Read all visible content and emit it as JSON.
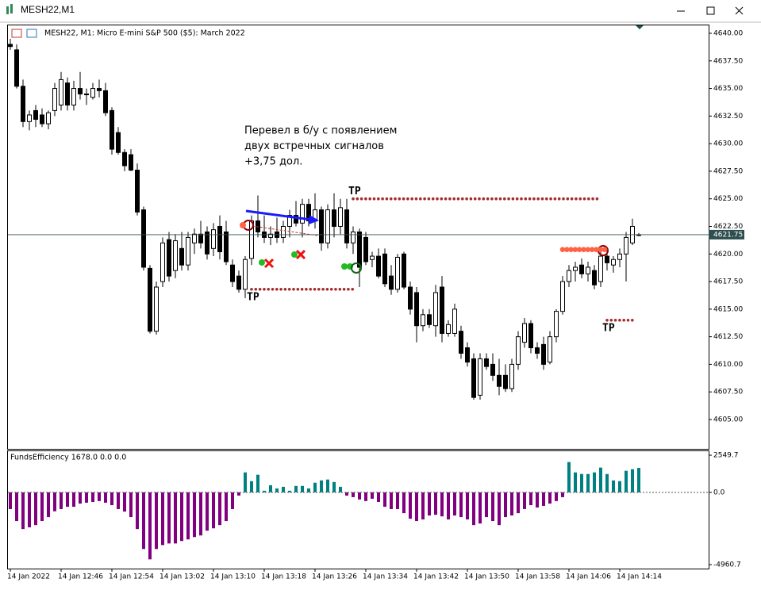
{
  "window_title": "MESH22,M1",
  "chart_data": [
    {
      "type": "candlestick",
      "title": "MESH22, M1:  Micro E-mini S&P 500 ($5): March 2022",
      "categories": [
        "14 Jan 2022",
        null,
        null,
        null,
        null,
        null,
        null,
        null,
        "14 Jan 12:46",
        null,
        null,
        null,
        null,
        null,
        null,
        null,
        "14 Jan 12:54",
        null,
        null,
        null,
        null,
        null,
        null,
        null,
        "14 Jan 13:02",
        null,
        null,
        null,
        null,
        null,
        null,
        null,
        "14 Jan 13:10",
        null,
        null,
        null,
        null,
        null,
        null,
        null,
        "14 Jan 13:18",
        null,
        null,
        null,
        null,
        null,
        null,
        null,
        "14 Jan 13:26",
        null,
        null,
        null,
        null,
        null,
        null,
        null,
        "14 Jan 13:34",
        null,
        null,
        null,
        null,
        null,
        null,
        null,
        "14 Jan 13:42",
        null,
        null,
        null,
        null,
        null,
        null,
        null,
        "14 Jan 13:50",
        null,
        null,
        null,
        null,
        null,
        null,
        null,
        "14 Jan 13:58",
        null,
        null,
        null,
        null,
        null,
        null,
        null,
        "14 Jan 14:06",
        null,
        null,
        null,
        null,
        null,
        null,
        null,
        "14 Jan 14:14",
        null,
        null,
        null
      ],
      "open": [
        4639.0,
        4638.5,
        4635.2,
        4632,
        4633,
        4632.6,
        4631.8,
        4633,
        4633.5,
        4635.5,
        4633.5,
        4635,
        4634.5,
        4634.2,
        4635,
        4634.8,
        4633,
        4631,
        4629.2,
        4629,
        4627.6,
        4624,
        4618.7,
        4613,
        4617.5,
        4621.3,
        4618.5,
        4620.5,
        4619,
        4621,
        4621.8,
        4622,
        4620.5,
        4622.5,
        4622,
        4619,
        4618,
        4616.8,
        4619.6,
        4623,
        4622,
        4621.5,
        4622,
        4621.5,
        4622.5,
        4623.5,
        4622.8,
        4624.5,
        4623,
        4624,
        4621,
        4624,
        4622.5,
        4624,
        4621,
        4622,
        4621.5,
        4619.5,
        4619.8,
        4620,
        4618,
        4616.8,
        4620,
        4617,
        4616.5,
        4613.5,
        4614.5,
        4613.5,
        4617,
        4612.8,
        4612.8,
        4613,
        4611.5,
        4610.5,
        4607.2,
        4610.5,
        4610,
        4609,
        4609,
        4607.8,
        4610,
        4612,
        4613.7,
        4611.5,
        4611.8,
        4610.2,
        4612.5,
        4614.8,
        4617.5,
        4618.5,
        4619,
        4618.2,
        4618.5,
        4617.5,
        4619.8,
        4619,
        4619.5,
        4620,
        4621,
        4621.75
      ],
      "high": [
        4639.5,
        4639,
        4635.8,
        4633,
        4633.5,
        4633.2,
        4633,
        4635.5,
        4636.5,
        4636,
        4635.7,
        4636.5,
        4635,
        4635.5,
        4635.8,
        4635.5,
        4633.3,
        4631.5,
        4629.5,
        4629.5,
        4628.2,
        4624.3,
        4619,
        4617.5,
        4621.5,
        4622,
        4621.8,
        4622,
        4622,
        4622.3,
        4623,
        4622.5,
        4622.8,
        4623.5,
        4623,
        4619.5,
        4618.5,
        4619.8,
        4623.5,
        4625.3,
        4623.5,
        4622.5,
        4623.3,
        4623,
        4624,
        4624.8,
        4625,
        4625,
        4625.5,
        4624.3,
        4624.5,
        4625.5,
        4625,
        4625,
        4622.5,
        4622.3,
        4622,
        4620.2,
        4620.5,
        4620.5,
        4619,
        4620,
        4620.2,
        4617.5,
        4617,
        4615,
        4615,
        4617.2,
        4618,
        4614,
        4615.5,
        4613.5,
        4612,
        4611,
        4611,
        4611,
        4611,
        4610.5,
        4610,
        4610.5,
        4613,
        4614.2,
        4614,
        4612,
        4612.5,
        4613,
        4615,
        4618,
        4619,
        4619.3,
        4619.6,
        4619.3,
        4619,
        4620.5,
        4620.3,
        4619.8,
        4620.5,
        4622,
        4623.2,
        4621.9
      ],
      "low": [
        4638.5,
        4635,
        4631.5,
        4631.2,
        4631.5,
        4631.5,
        4631.3,
        4632.5,
        4633,
        4633,
        4633,
        4634,
        4633.5,
        4634,
        4634.2,
        4632.5,
        4629,
        4629,
        4627.5,
        4627.5,
        4623.5,
        4618.5,
        4612.8,
        4612.7,
        4617,
        4617.5,
        4617.8,
        4618.5,
        4618.5,
        4620,
        4620.5,
        4619.5,
        4619.8,
        4619.5,
        4619,
        4617,
        4616.5,
        4616,
        4619,
        4621.5,
        4621,
        4620.8,
        4621,
        4621,
        4621.5,
        4622.5,
        4621.5,
        4622.5,
        4622.3,
        4620.3,
        4620.5,
        4621.5,
        4621.8,
        4620.5,
        4620,
        4617,
        4619,
        4618.8,
        4617.8,
        4617,
        4616.3,
        4616.5,
        4616.8,
        4614.5,
        4612,
        4613,
        4613.3,
        4612.5,
        4612,
        4612.5,
        4612.5,
        4610.5,
        4609.8,
        4606.8,
        4606.8,
        4609.5,
        4608.5,
        4607.2,
        4607.5,
        4607.5,
        4609.5,
        4611.5,
        4611,
        4610.5,
        4609.5,
        4610,
        4612,
        4614.5,
        4617,
        4617.5,
        4617.8,
        4617.5,
        4616.8,
        4617,
        4618.5,
        4618.3,
        4618.8,
        4617.5,
        4620.8,
        4621.6
      ],
      "close": [
        4638.8,
        4635.2,
        4632,
        4632.6,
        4632.2,
        4631.8,
        4632.8,
        4635,
        4635.8,
        4633.5,
        4635,
        4634.5,
        4634.5,
        4635,
        4634.8,
        4632.8,
        4629.5,
        4629.2,
        4628,
        4627.6,
        4623.8,
        4618.8,
        4613,
        4617,
        4621,
        4618,
        4621.2,
        4619,
        4621.5,
        4621.8,
        4621,
        4620,
        4622.2,
        4620.2,
        4619.3,
        4617.5,
        4616.8,
        4619.5,
        4623,
        4622,
        4621.5,
        4621.8,
        4621.5,
        4622.5,
        4623.5,
        4622.8,
        4624.5,
        4623,
        4624,
        4621,
        4624,
        4622.5,
        4624.2,
        4621,
        4622,
        4618.8,
        4619.3,
        4619.8,
        4618,
        4617.3,
        4616.8,
        4619.7,
        4617,
        4615,
        4613.5,
        4614.5,
        4613.6,
        4616.5,
        4612.8,
        4613.6,
        4615,
        4611,
        4610.2,
        4607,
        4610.5,
        4609.8,
        4609,
        4608,
        4607.8,
        4610,
        4612.5,
        4613.7,
        4611.5,
        4611,
        4610,
        4612.5,
        4614.8,
        4617.5,
        4618.5,
        4618.8,
        4618.2,
        4618.8,
        4617.2,
        4619.8,
        4619.2,
        4619.5,
        4620,
        4621.5,
        4622.5,
        4621.75
      ],
      "up_color": "#ffffff",
      "down_color": "#000000",
      "outline_color": "#000000",
      "ylim": [
        4602.34,
        4640.79
      ],
      "yticks": [
        {
          "value": 4605,
          "label": "4605.00"
        },
        {
          "value": 4607.5,
          "label": "4607.50"
        },
        {
          "value": 4610,
          "label": "4610.00"
        },
        {
          "value": 4612.5,
          "label": "4612.50"
        },
        {
          "value": 4615,
          "label": "4615.00"
        },
        {
          "value": 4617.5,
          "label": "4617.50"
        },
        {
          "value": 4620,
          "label": "4620.00"
        },
        {
          "value": 4622.5,
          "label": "4622.50"
        },
        {
          "value": 4625,
          "label": "4625.00"
        },
        {
          "value": 4627.5,
          "label": "4627.50"
        },
        {
          "value": 4630,
          "label": "4630.00"
        },
        {
          "value": 4632.5,
          "label": "4632.50"
        },
        {
          "value": 4635,
          "label": "4635.00"
        },
        {
          "value": 4637.5,
          "label": "4637.50"
        },
        {
          "value": 4640,
          "label": "4640.00"
        }
      ],
      "last_price": 4621.75,
      "annotations": [
        "Перевел в б/у с появлением",
        "двух встречных сигналов",
        "+3,75 дол."
      ],
      "annotation_color": "#1a1aff",
      "levels": [
        {
          "label": "TP",
          "price": 4625,
          "from": 54,
          "to": 93,
          "color": "#a52a2a"
        },
        {
          "label": "TP",
          "price": 4616.8,
          "from": 38,
          "to": 54,
          "color": "#a52a2a"
        },
        {
          "label": "TP",
          "price": 4614,
          "from": 94,
          "to": 98,
          "color": "#a52a2a"
        },
        {
          "price": 4620.4,
          "from": 87,
          "to": 94,
          "color": "#ff6347"
        }
      ],
      "grid": false
    },
    {
      "type": "bar",
      "title": "FundsEfficiency 1678.0 0.0 0.0",
      "values": [
        -1150,
        -1970,
        -2520,
        -2400,
        -2250,
        -1970,
        -1700,
        -1300,
        -1150,
        -990,
        -990,
        -770,
        -710,
        -660,
        -600,
        -710,
        -880,
        -1150,
        -1320,
        -1700,
        -2520,
        -3890,
        -4600,
        -3890,
        -3620,
        -3510,
        -3510,
        -3340,
        -3230,
        -3070,
        -2960,
        -2630,
        -2470,
        -2250,
        -1970,
        -1150,
        -220,
        1370,
        770,
        1210,
        110,
        490,
        270,
        380,
        110,
        440,
        440,
        270,
        660,
        820,
        880,
        710,
        380,
        -220,
        -330,
        -490,
        -600,
        -440,
        -660,
        -990,
        -1150,
        -1150,
        -1430,
        -1810,
        -1970,
        -1860,
        -1590,
        -1540,
        -1650,
        -1860,
        -1590,
        -1700,
        -1860,
        -2250,
        -2140,
        -1700,
        -1970,
        -2250,
        -1700,
        -1590,
        -1430,
        -1150,
        -880,
        -1040,
        -930,
        -770,
        -600,
        -330,
        2080,
        1370,
        1260,
        1260,
        1370,
        1700,
        1260,
        820,
        770,
        1480,
        1590,
        1678
      ],
      "positive_color": "#008080",
      "negative_color": "#800080",
      "ylim": [
        -5234.8,
        2878.6
      ],
      "yticks": [
        -4960.7,
        {
          "value": 0,
          "label": "0.0"
        },
        2549.7
      ],
      "grid": false
    }
  ]
}
